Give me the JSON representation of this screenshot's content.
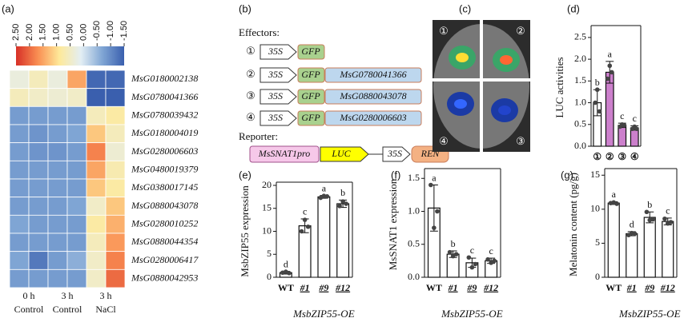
{
  "chart_data": [
    {
      "type": "heatmap",
      "panel_label": "(a)",
      "rows": [
        "MsG0180002138",
        "MsG0780041366",
        "MsG0780039432",
        "MsG0180004019",
        "MsG0280006603",
        "MsG0480019379",
        "MsG0380017145",
        "MsG0880043078",
        "MsG0280010252",
        "MsG0880044354",
        "MsG0280006417",
        "MsG0880042953"
      ],
      "column_groups": [
        {
          "time": "0 h",
          "treatment": "Control"
        },
        {
          "time": "3 h",
          "treatment": "Control"
        },
        {
          "time": "3 h",
          "treatment": "NaCl"
        }
      ],
      "values": [
        [
          0.3,
          0.6,
          0.3,
          1.5,
          -1.4,
          -1.4
        ],
        [
          0.6,
          0.5,
          0.4,
          0.5,
          -1.5,
          -1.5
        ],
        [
          -0.8,
          -0.8,
          -0.8,
          -0.8,
          0.6,
          0.8
        ],
        [
          -0.8,
          -0.9,
          -0.8,
          -0.7,
          1.2,
          0.6
        ],
        [
          -0.8,
          -0.9,
          -0.9,
          -0.8,
          1.8,
          0.4
        ],
        [
          -0.8,
          -0.8,
          -0.8,
          -0.8,
          1.5,
          0.7
        ],
        [
          -0.8,
          -0.8,
          -0.8,
          -0.8,
          1.2,
          0.8
        ],
        [
          -0.8,
          -0.8,
          -0.8,
          -0.7,
          0.5,
          1.2
        ],
        [
          -0.7,
          -0.8,
          -0.8,
          -0.8,
          0.8,
          1.4
        ],
        [
          -0.8,
          -0.8,
          -0.8,
          -0.8,
          0.6,
          1.6
        ],
        [
          -0.7,
          -1.2,
          -0.8,
          -0.6,
          0.5,
          1.8
        ],
        [
          -0.8,
          -0.8,
          -0.8,
          -0.8,
          0.5,
          2.0
        ]
      ],
      "colorbar_lim": [
        2.5,
        -1.5
      ],
      "colorbar_ticks": [
        {
          "value": 2.5,
          "label": "2.50"
        },
        {
          "value": 2,
          "label": "2.00"
        },
        {
          "value": 1.5,
          "label": "1.50"
        },
        {
          "value": 1,
          "label": "1.00"
        },
        {
          "value": 0.5,
          "label": "0.50"
        },
        {
          "value": 0,
          "label": "0.00"
        },
        {
          "value": -0.5,
          "label": "-0.50"
        },
        {
          "value": -1,
          "label": "-1.00"
        },
        {
          "value": -1.5,
          "label": "-1.50"
        }
      ],
      "colors": [
        "#d73027",
        "#f98e52",
        "#fee999",
        "#e3eef4",
        "#7fa5d4",
        "#3a5fae"
      ]
    },
    {
      "type": "bar",
      "panel_label": "(d)",
      "ylabel": "LUC activities",
      "categories": [
        "①",
        "②",
        "③",
        "④"
      ],
      "values": [
        1.0,
        1.7,
        0.48,
        0.42
      ],
      "errors": [
        0.3,
        0.25,
        0.05,
        0.05
      ],
      "points": [
        [
          1.0,
          1.3,
          0.8
        ],
        [
          1.55,
          1.85,
          1.7
        ],
        [
          0.45,
          0.5,
          0.48
        ],
        [
          0.4,
          0.45,
          0.4
        ]
      ],
      "letters": [
        "b",
        "a",
        "c",
        "c"
      ],
      "colors": [
        "#ffffff",
        "#cc80cc",
        "#cc80cc",
        "#cc80cc"
      ],
      "ylim": [
        0,
        2.7
      ],
      "yticks": [
        {
          "value": 0,
          "label": "0.0"
        },
        {
          "value": 0.5,
          "label": "0.5"
        },
        {
          "value": 1,
          "label": "1.0"
        },
        {
          "value": 1.5,
          "label": "1.5"
        },
        {
          "value": 2,
          "label": "2.0"
        },
        {
          "value": 2.5,
          "label": "2.5"
        }
      ]
    },
    {
      "type": "bar",
      "panel_label": "(e)",
      "ylabel": "MsbZIP55 expression",
      "group_label": "MsbZIP55-OE",
      "categories": [
        "WT",
        "#1",
        "#9",
        "#12"
      ],
      "values": [
        1.0,
        11.2,
        17.5,
        16.0
      ],
      "errors": [
        0.3,
        1.5,
        0.3,
        0.8
      ],
      "points": [
        [
          1.0,
          1.2,
          0.9
        ],
        [
          10,
          12.5,
          11
        ],
        [
          17.3,
          17.7,
          17.6
        ],
        [
          15.5,
          16.5,
          16
        ]
      ],
      "letters": [
        "d",
        "c",
        "a",
        "b"
      ],
      "colors": [
        "#ffffff",
        "#ffffff",
        "#ffffff",
        "#ffffff"
      ],
      "ylim": [
        0,
        20
      ],
      "yticks": [
        0,
        5,
        10,
        15,
        20
      ]
    },
    {
      "type": "bar",
      "panel_label": "(f)",
      "ylabel": "MsSNAT1 expression",
      "group_label": "MsbZIP55-OE",
      "categories": [
        "WT",
        "#1",
        "#9",
        "#12"
      ],
      "values": [
        1.05,
        0.35,
        0.22,
        0.25
      ],
      "errors": [
        0.35,
        0.05,
        0.07,
        0.04
      ],
      "points": [
        [
          1.4,
          0.75,
          1.0
        ],
        [
          0.38,
          0.32,
          0.35
        ],
        [
          0.3,
          0.15,
          0.2
        ],
        [
          0.27,
          0.22,
          0.25
        ]
      ],
      "letters": [
        "a",
        "b",
        "c",
        "c"
      ],
      "colors": [
        "#ffffff",
        "#ffffff",
        "#ffffff",
        "#ffffff"
      ],
      "ylim": [
        0,
        1.6
      ],
      "yticks": [
        {
          "value": 0,
          "label": "0.0"
        },
        {
          "value": 0.5,
          "label": "0.5"
        },
        {
          "value": 1,
          "label": "1.0"
        },
        {
          "value": 1.5,
          "label": "1.5"
        }
      ]
    },
    {
      "type": "bar",
      "panel_label": "(g)",
      "ylabel": "Melatonin content (pg/g)",
      "group_label": "MsbZIP55-OE",
      "categories": [
        "WT",
        "#1",
        "#9",
        "#12"
      ],
      "values": [
        10.9,
        6.4,
        8.8,
        8.2
      ],
      "errors": [
        0.2,
        0.3,
        0.8,
        0.5
      ],
      "points": [
        [
          10.9,
          11.0,
          10.8
        ],
        [
          6.2,
          6.5,
          6.4
        ],
        [
          9.6,
          8.4,
          8.5
        ],
        [
          8.6,
          7.9,
          8.1
        ]
      ],
      "letters": [
        "a",
        "d",
        "b",
        "c"
      ],
      "colors": [
        "#ffffff",
        "#ffffff",
        "#ffffff",
        "#ffffff"
      ],
      "ylim": [
        0,
        15.5
      ],
      "yticks": [
        0,
        5,
        10,
        15
      ]
    }
  ],
  "diagram": {
    "panel_label": "(b)",
    "effectors_label": "Effectors:",
    "effectors": [
      {
        "number": "①",
        "promoter": "35S",
        "tag": "GFP"
      },
      {
        "number": "②",
        "promoter": "35S",
        "tag": "GFP",
        "gene": "MsG0780041366"
      },
      {
        "number": "③",
        "promoter": "35S",
        "tag": "GFP",
        "gene": "MsG0880043078"
      },
      {
        "number": "④",
        "promoter": "35S",
        "tag": "GFP",
        "gene": "MsG0280006603"
      }
    ],
    "reporter_label": "Reporter:",
    "reporter": {
      "promoter": "MsSNAT1pro",
      "gene": "LUC",
      "promoter2": "35S",
      "control_gene": "REN"
    }
  },
  "photo": {
    "panel_label": "(c)",
    "spots": [
      "①",
      "②",
      "④",
      "③"
    ]
  }
}
